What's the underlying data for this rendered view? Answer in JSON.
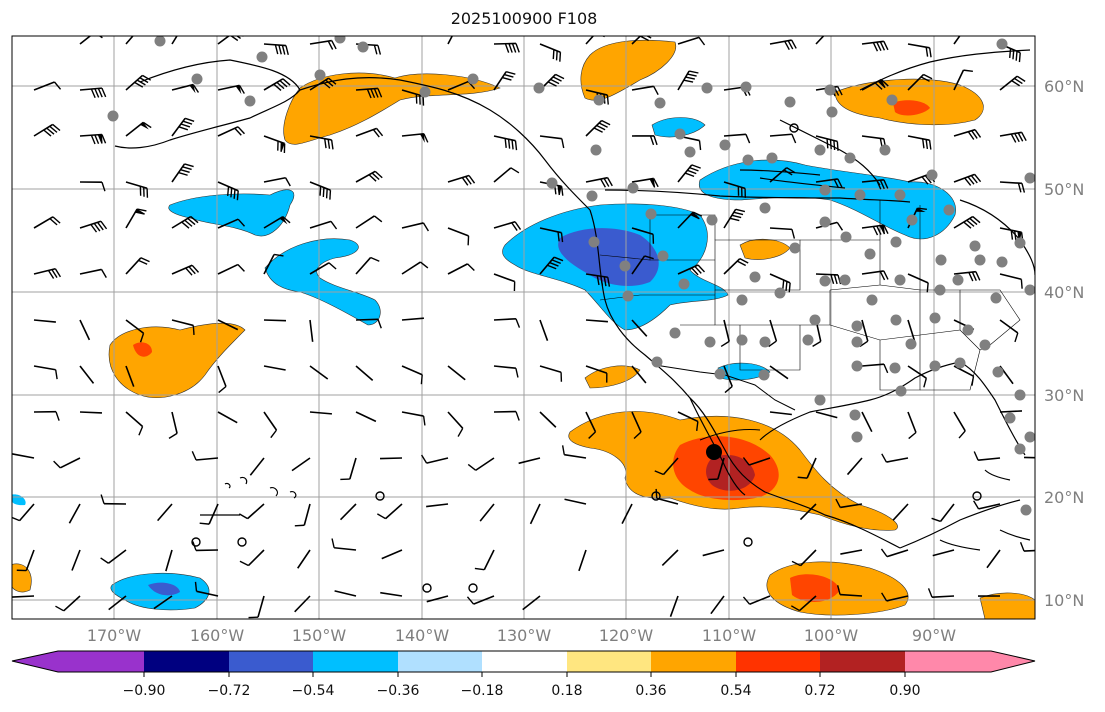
{
  "title": "2025100900 F108",
  "lat_labels": [
    "60°N",
    "50°N",
    "40°N",
    "30°N",
    "20°N",
    "10°N"
  ],
  "lon_labels": [
    "170°W",
    "160°W",
    "150°W",
    "140°W",
    "130°W",
    "120°W",
    "110°W",
    "100°W",
    "90°W"
  ],
  "colorbar": {
    "ticks": [
      "−0.90",
      "−0.72",
      "−0.54",
      "−0.36",
      "−0.18",
      "0.18",
      "0.36",
      "0.54",
      "0.72",
      "0.90"
    ],
    "colors": [
      "#9932cc",
      "#000080",
      "#3a5bcf",
      "#00bfff",
      "#b0e0ff",
      "#ffffff",
      "#ffe680",
      "#ffa500",
      "#ff3300",
      "#b22222",
      "#ff88aa"
    ]
  },
  "colors": {
    "positive_light": "#ffe680",
    "positive_mid": "#ffa500",
    "positive_strong": "#ff4500",
    "positive_max": "#b22222",
    "negative_light": "#b0e0ff",
    "negative_mid": "#00bfff",
    "negative_strong": "#3a5bcf",
    "grid": "#a0a0a0",
    "coast": "#000000",
    "station": "#808080"
  }
}
